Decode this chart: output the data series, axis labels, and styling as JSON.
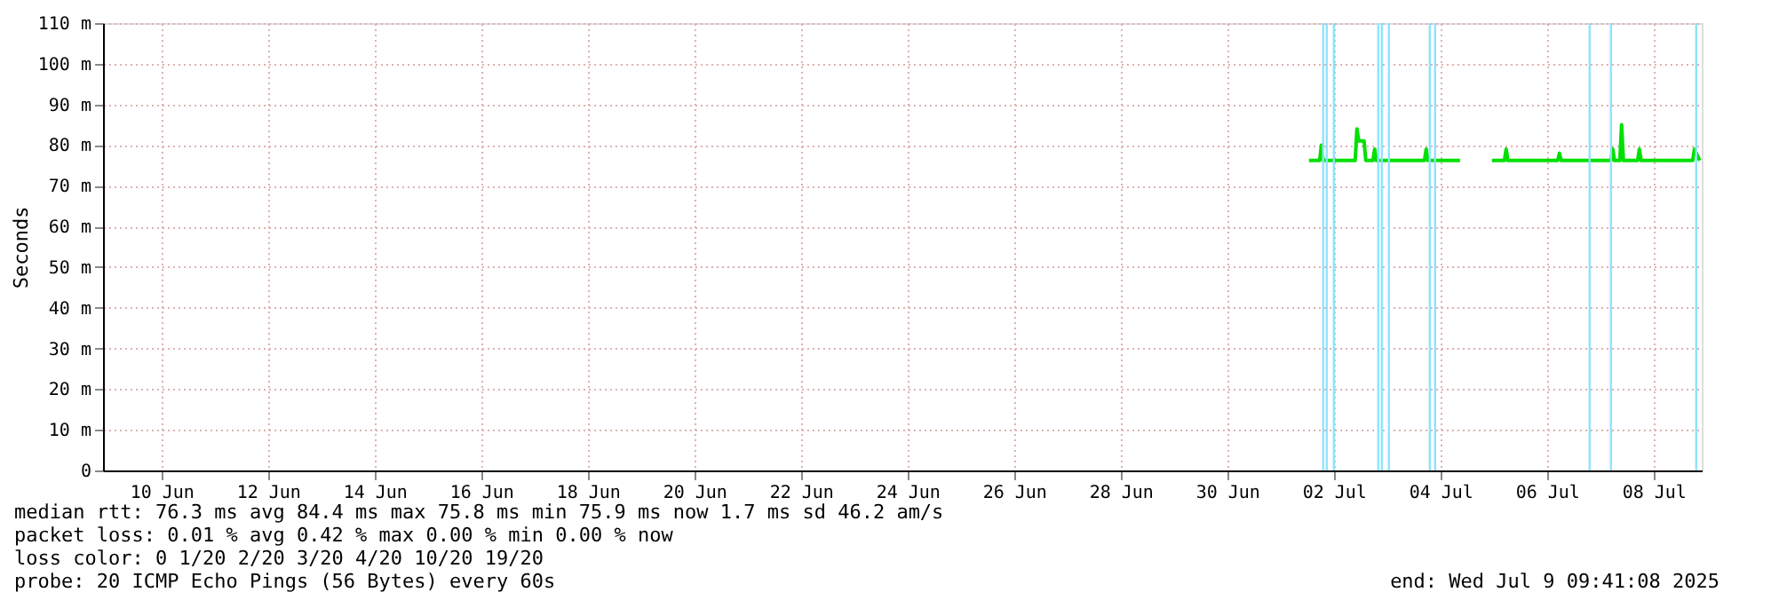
{
  "chart_data": {
    "type": "line",
    "ylabel": "Seconds",
    "x": [
      "2025-07-02T00:48",
      "2025-07-02T05:36",
      "2025-07-02T06:24",
      "2025-07-02T07:12",
      "2025-07-02T21:36",
      "2025-07-02T22:24",
      "2025-07-02T23:12",
      "2025-07-03T01:36",
      "2025-07-03T02:24",
      "2025-07-03T05:36",
      "2025-07-03T06:24",
      "2025-07-03T07:12",
      "2025-07-04T04:48",
      "2025-07-04T05:36",
      "2025-07-04T06:24",
      "2025-07-04T20:48",
      "2025-07-04T22:48",
      "2025-07-05T11:12",
      "2025-07-05T16:48",
      "2025-07-05T17:36",
      "2025-07-05T18:24",
      "2025-07-06T16:48",
      "2025-07-06T17:36",
      "2025-07-06T18:24",
      "2025-07-07T16:48",
      "2025-07-07T17:36",
      "2025-07-07T18:24",
      "2025-07-07T20:48",
      "2025-07-07T21:36",
      "2025-07-07T22:24",
      "2025-07-08T04:48",
      "2025-07-08T05:36",
      "2025-07-08T06:24",
      "2025-07-09T05:36",
      "2025-07-09T06:24",
      "2025-07-09T08:48"
    ],
    "series": [
      {
        "color": "#00e000",
        "values": [
          76.2,
          76.2,
          80,
          76.2,
          76.2,
          84,
          81,
          81,
          76.2,
          76.2,
          79,
          76.2,
          76.2,
          79,
          76.2,
          76.2,
          null,
          76.2,
          76.2,
          79,
          76.2,
          76.2,
          78,
          76.2,
          76.2,
          79,
          76.2,
          76.2,
          85,
          76.2,
          76.2,
          79,
          76.2,
          76.2,
          79,
          76.2
        ]
      }
    ],
    "xlim": [
      "2025-06-09T09:41",
      "2025-07-09T09:41"
    ],
    "xticks": [
      {
        "value": "2025-06-10T12:00",
        "label": "10 Jun"
      },
      {
        "value": "2025-06-12T12:00",
        "label": "12 Jun"
      },
      {
        "value": "2025-06-14T12:00",
        "label": "14 Jun"
      },
      {
        "value": "2025-06-16T12:00",
        "label": "16 Jun"
      },
      {
        "value": "2025-06-18T12:00",
        "label": "18 Jun"
      },
      {
        "value": "2025-06-20T12:00",
        "label": "20 Jun"
      },
      {
        "value": "2025-06-22T12:00",
        "label": "22 Jun"
      },
      {
        "value": "2025-06-24T12:00",
        "label": "24 Jun"
      },
      {
        "value": "2025-06-26T12:00",
        "label": "26 Jun"
      },
      {
        "value": "2025-06-28T12:00",
        "label": "28 Jun"
      },
      {
        "value": "2025-06-30T12:00",
        "label": "30 Jun"
      },
      {
        "value": "2025-07-02T12:00",
        "label": "02 Jul"
      },
      {
        "value": "2025-07-04T12:00",
        "label": "04 Jul"
      },
      {
        "value": "2025-07-06T12:00",
        "label": "06 Jul"
      },
      {
        "value": "2025-07-08T12:00",
        "label": "08 Jul"
      }
    ],
    "ylim": [
      0,
      110
    ],
    "yticks": [
      0,
      {
        "value": 10,
        "label": "10 m"
      },
      {
        "value": 20,
        "label": "20 m"
      },
      {
        "value": 30,
        "label": "30 m"
      },
      {
        "value": 40,
        "label": "40 m"
      },
      {
        "value": 50,
        "label": "50 m"
      },
      {
        "value": 60,
        "label": "60 m"
      },
      {
        "value": 70,
        "label": "70 m"
      },
      {
        "value": 80,
        "label": "80 m"
      },
      {
        "value": 90,
        "label": "90 m"
      },
      {
        "value": 100,
        "label": "100 m"
      },
      {
        "value": 110,
        "label": "110 m"
      }
    ],
    "ref_lines": [
      {
        "axis": "x",
        "value": "2025-07-02T07:12",
        "color": "#8fe3ff"
      },
      {
        "axis": "x",
        "value": "2025-07-02T08:48",
        "color": "#8fe3ff"
      },
      {
        "axis": "x",
        "value": "2025-07-02T12:00",
        "color": "#8fe3ff"
      },
      {
        "axis": "x",
        "value": "2025-07-03T08:00",
        "color": "#8fe3ff"
      },
      {
        "axis": "x",
        "value": "2025-07-03T09:36",
        "color": "#8fe3ff"
      },
      {
        "axis": "x",
        "value": "2025-07-03T12:48",
        "color": "#8fe3ff"
      },
      {
        "axis": "x",
        "value": "2025-07-04T07:12",
        "color": "#8fe3ff"
      },
      {
        "axis": "x",
        "value": "2025-07-04T09:36",
        "color": "#8fe3ff"
      },
      {
        "axis": "x",
        "value": "2025-07-07T07:12",
        "color": "#8fe3ff"
      },
      {
        "axis": "x",
        "value": "2025-07-07T16:48",
        "color": "#8fe3ff"
      },
      {
        "axis": "x",
        "value": "2025-07-09T07:12",
        "color": "#8fe3ff"
      }
    ],
    "grid": true,
    "marker": "none",
    "line_style": "solid",
    "annotations": [
      "median rtt:  76.3 ms avg  84.4 ms max  75.8 ms min  75.9 ms now  1.7 ms sd  46.2   am/s",
      "packet loss: 0.01 % avg  0.42 % max  0.00 % min  0.00 % now",
      "loss color:  0  1/20  2/20  3/20  4/20  10/20  19/20",
      "probe:       20 ICMP Echo Pings (56 Bytes) every 60s",
      "end: Wed Jul  9 09:41:08 2025"
    ]
  }
}
